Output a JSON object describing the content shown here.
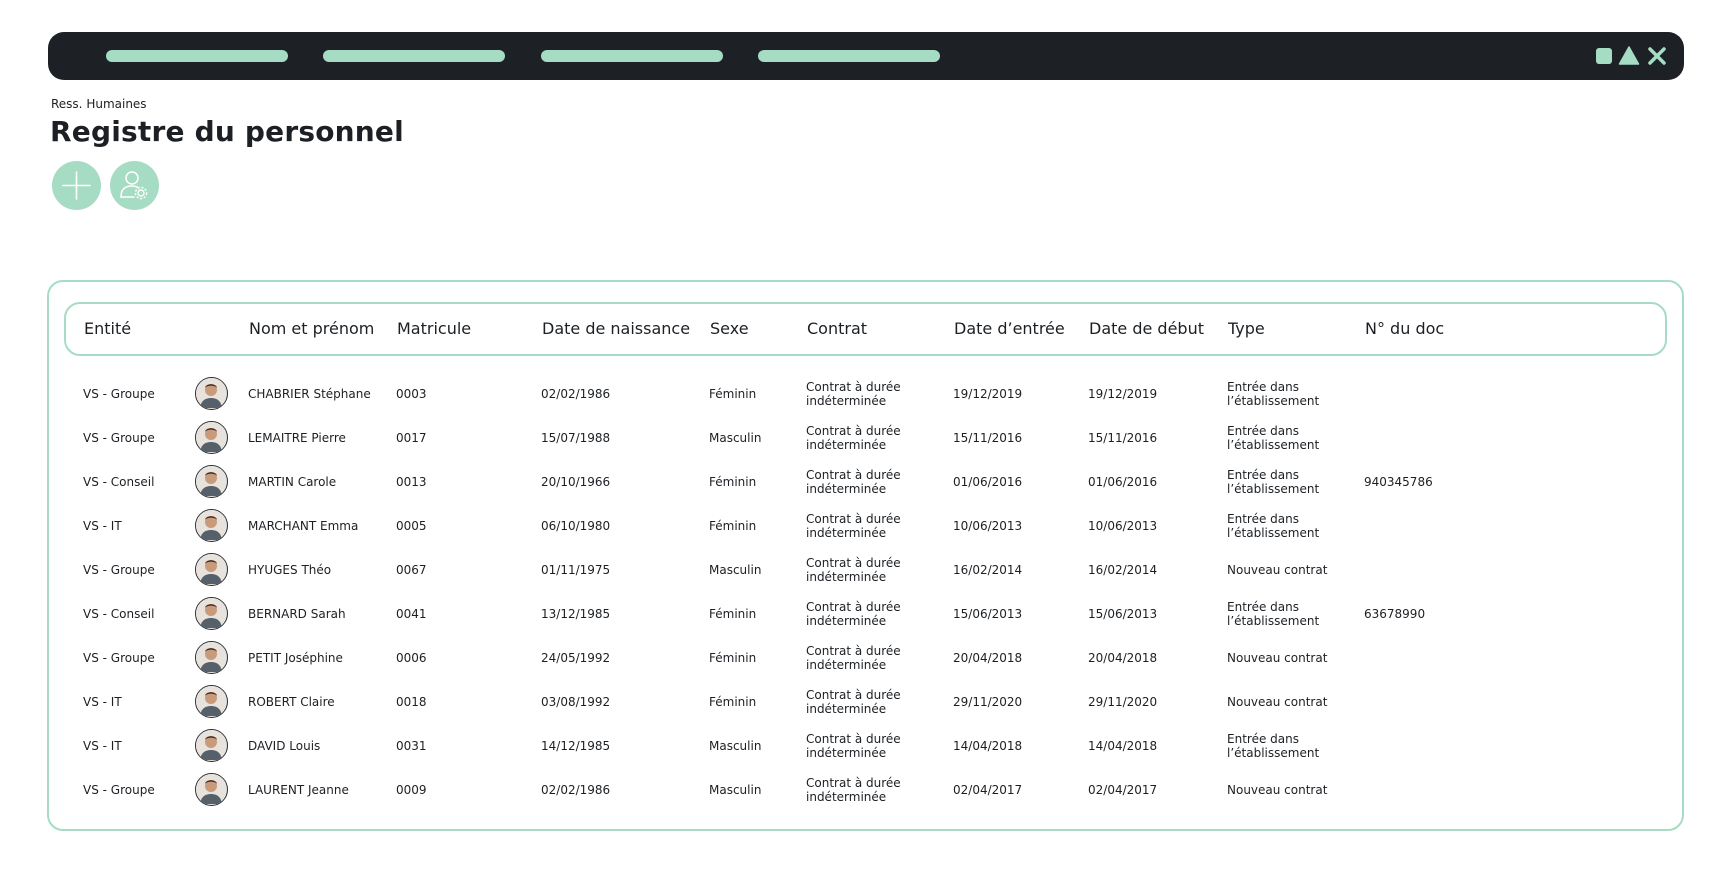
{
  "window": {
    "nav_items": 4
  },
  "breadcrumb": "Ress. Humaines",
  "page_title": "Registre du personnel",
  "actions": {
    "add_icon": "plus-icon",
    "settings_icon": "user-gear-icon"
  },
  "colors": {
    "accent": "#a6dcc4",
    "topbar": "#1d2126",
    "text": "#1c2024"
  },
  "table": {
    "columns": [
      "Entité",
      "Nom et prénom",
      "Matricule",
      "Date de naissance",
      "Sexe",
      "Contrat",
      "Date d’entrée",
      "Date de début",
      "Type",
      "N° du doc"
    ],
    "rows": [
      {
        "entite": "VS - Groupe",
        "nom": "CHABRIER Stéphane",
        "matricule": "0003",
        "naissance": "02/02/1986",
        "sexe": "Féminin",
        "contrat": "Contrat à durée indéterminée",
        "entree": "19/12/2019",
        "debut": "19/12/2019",
        "type": "Entrée dans l’établissement",
        "doc": ""
      },
      {
        "entite": "VS - Groupe",
        "nom": "LEMAITRE Pierre",
        "matricule": "0017",
        "naissance": "15/07/1988",
        "sexe": "Masculin",
        "contrat": "Contrat à durée indéterminée",
        "entree": "15/11/2016",
        "debut": "15/11/2016",
        "type": "Entrée dans l’établissement",
        "doc": ""
      },
      {
        "entite": "VS - Conseil",
        "nom": "MARTIN Carole",
        "matricule": "0013",
        "naissance": "20/10/1966",
        "sexe": "Féminin",
        "contrat": "Contrat à durée indéterminée",
        "entree": "01/06/2016",
        "debut": "01/06/2016",
        "type": "Entrée dans l’établissement",
        "doc": "940345786"
      },
      {
        "entite": "VS - IT",
        "nom": "MARCHANT Emma",
        "matricule": "0005",
        "naissance": "06/10/1980",
        "sexe": "Féminin",
        "contrat": "Contrat à durée indéterminée",
        "entree": "10/06/2013",
        "debut": "10/06/2013",
        "type": "Entrée dans l’établissement",
        "doc": ""
      },
      {
        "entite": "VS - Groupe",
        "nom": "HYUGES Théo",
        "matricule": "0067",
        "naissance": "01/11/1975",
        "sexe": "Masculin",
        "contrat": "Contrat à durée indéterminée",
        "entree": "16/02/2014",
        "debut": "16/02/2014",
        "type": "Nouveau contrat",
        "doc": ""
      },
      {
        "entite": "VS - Conseil",
        "nom": "BERNARD Sarah",
        "matricule": "0041",
        "naissance": "13/12/1985",
        "sexe": "Féminin",
        "contrat": "Contrat à durée indéterminée",
        "entree": "15/06/2013",
        "debut": "15/06/2013",
        "type": "Entrée dans l’établissement",
        "doc": "63678990"
      },
      {
        "entite": "VS - Groupe",
        "nom": "PETIT Joséphine",
        "matricule": "0006",
        "naissance": "24/05/1992",
        "sexe": "Féminin",
        "contrat": "Contrat à durée indéterminée",
        "entree": "20/04/2018",
        "debut": "20/04/2018",
        "type": "Nouveau contrat",
        "doc": ""
      },
      {
        "entite": "VS - IT",
        "nom": "ROBERT Claire",
        "matricule": "0018",
        "naissance": "03/08/1992",
        "sexe": "Féminin",
        "contrat": "Contrat à durée indéterminée",
        "entree": "29/11/2020",
        "debut": "29/11/2020",
        "type": "Nouveau contrat",
        "doc": ""
      },
      {
        "entite": "VS - IT",
        "nom": "DAVID Louis",
        "matricule": "0031",
        "naissance": "14/12/1985",
        "sexe": "Masculin",
        "contrat": "Contrat à durée indéterminée",
        "entree": "14/04/2018",
        "debut": "14/04/2018",
        "type": "Entrée dans l’établissement",
        "doc": ""
      },
      {
        "entite": "VS - Groupe",
        "nom": "LAURENT Jeanne",
        "matricule": "0009",
        "naissance": "02/02/1986",
        "sexe": "Masculin",
        "contrat": "Contrat à durée indéterminée",
        "entree": "02/04/2017",
        "debut": "02/04/2017",
        "type": "Nouveau contrat",
        "doc": ""
      }
    ]
  }
}
